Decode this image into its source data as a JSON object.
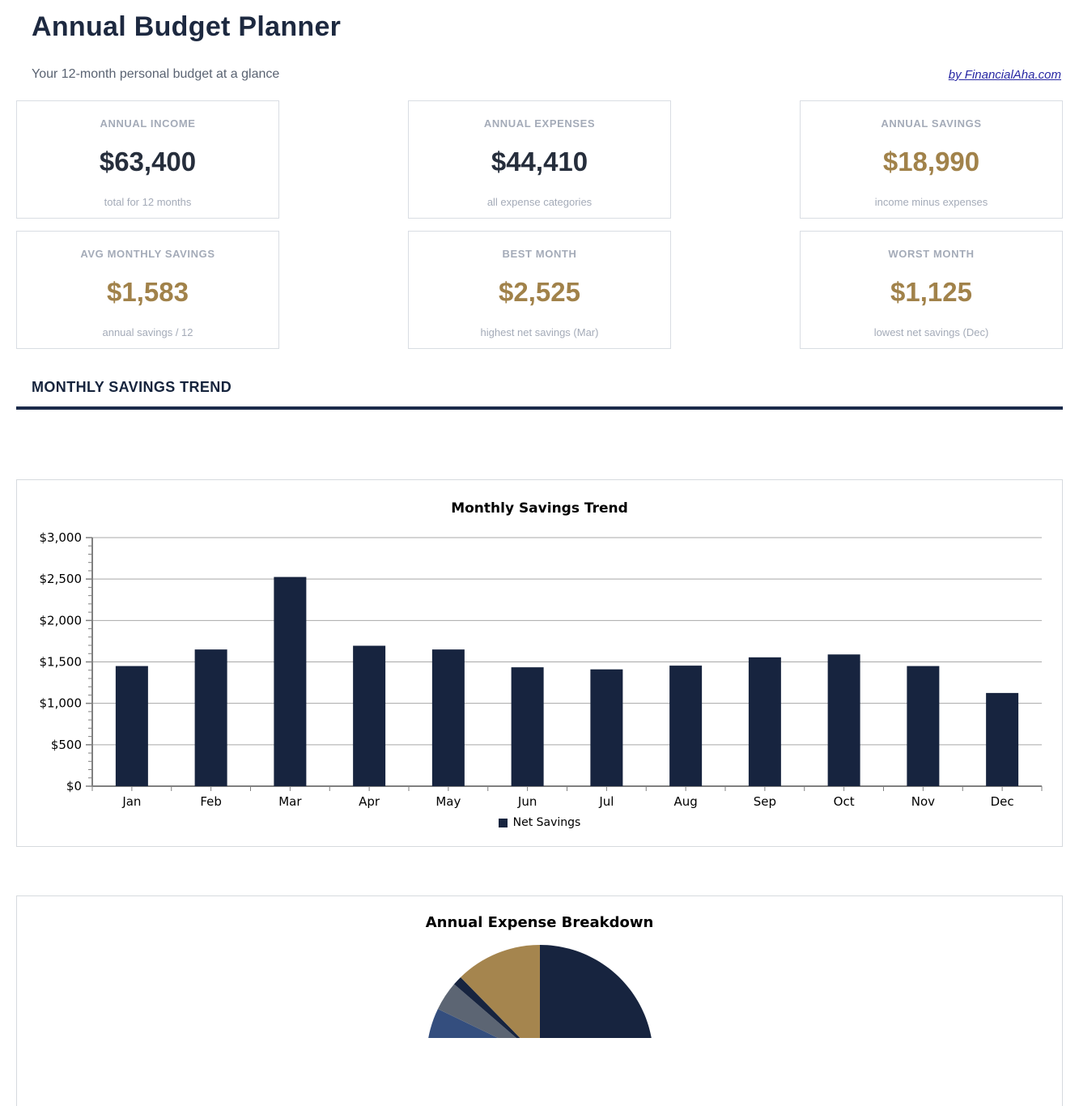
{
  "page": {
    "title": "Annual Budget Planner",
    "subtitle": "Your 12-month personal budget at a glance",
    "attribution_link": "by FinancialAha.com"
  },
  "colors": {
    "heading_navy": "#1d2940",
    "accent_gold": "#a1824a",
    "bar_navy": "#17243f",
    "rule_navy": "#1b2a4a",
    "muted_gray": "#a4abb8",
    "link_blue": "#2727a3"
  },
  "stats": [
    {
      "label": "ANNUAL INCOME",
      "value": "$63,400",
      "sub": "total for 12 months",
      "value_color": "#262e3c"
    },
    {
      "label": "ANNUAL EXPENSES",
      "value": "$44,410",
      "sub": "all expense categories",
      "value_color": "#262e3c"
    },
    {
      "label": "ANNUAL SAVINGS",
      "value": "$18,990",
      "sub": "income minus expenses",
      "value_color": "#a1824a"
    },
    {
      "label": "AVG MONTHLY SAVINGS",
      "value": "$1,583",
      "sub": "annual savings / 12",
      "value_color": "#a1824a"
    },
    {
      "label": "BEST MONTH",
      "value": "$2,525",
      "sub": "highest net savings (Mar)",
      "value_color": "#a1824a"
    },
    {
      "label": "WORST MONTH",
      "value": "$1,125",
      "sub": "lowest net savings (Dec)",
      "value_color": "#a1824a"
    }
  ],
  "section": {
    "heading": "MONTHLY SAVINGS TREND"
  },
  "chart_data": [
    {
      "type": "bar",
      "title": "Monthly Savings Trend",
      "categories": [
        "Jan",
        "Feb",
        "Mar",
        "Apr",
        "May",
        "Jun",
        "Jul",
        "Aug",
        "Sep",
        "Oct",
        "Nov",
        "Dec"
      ],
      "series": [
        {
          "name": "Net Savings",
          "values": [
            1450,
            1650,
            2525,
            1695,
            1650,
            1435,
            1410,
            1455,
            1555,
            1590,
            1450,
            1125
          ]
        }
      ],
      "xlabel": "",
      "ylabel": "",
      "ylim": [
        0,
        3000
      ],
      "ytick_step": 500,
      "ytick_minor_step": 100,
      "ytick_labels": [
        "$0",
        "$500",
        "$1,000",
        "$1,500",
        "$2,000",
        "$2,500",
        "$3,000"
      ],
      "grid": true,
      "legend_position": "bottom",
      "bar_color": "#17243f",
      "gridline_color": "#a8a8a8",
      "axis_color": "#808080"
    },
    {
      "type": "pie",
      "title": "Annual Expense Breakdown",
      "note": "pie is clipped at the bottom of the screenshot; only the top of the wheel is visible",
      "slices": [
        {
          "name": "large-navy-slice",
          "color": "#17243f",
          "start_deg": 0,
          "end_deg": 120,
          "visible_share_pct": "≥28 (clipped)"
        },
        {
          "name": "steel-blue-slice",
          "color": "#344e7e",
          "start_deg": 268,
          "end_deg": 295.8,
          "visible_share_pct": "≥4.3 (clipped)"
        },
        {
          "name": "slate-gray-slice",
          "color": "#5c6573",
          "start_deg": 295.8,
          "end_deg": 310.8,
          "visible_share_pct": "4.2"
        },
        {
          "name": "navy-sliver-slice",
          "color": "#17243f",
          "start_deg": 310.8,
          "end_deg": 315.6,
          "visible_share_pct": "1.3"
        },
        {
          "name": "gold-slice",
          "color": "#a5854e",
          "start_deg": 315.6,
          "end_deg": 360,
          "visible_share_pct": "12.3"
        }
      ]
    }
  ]
}
